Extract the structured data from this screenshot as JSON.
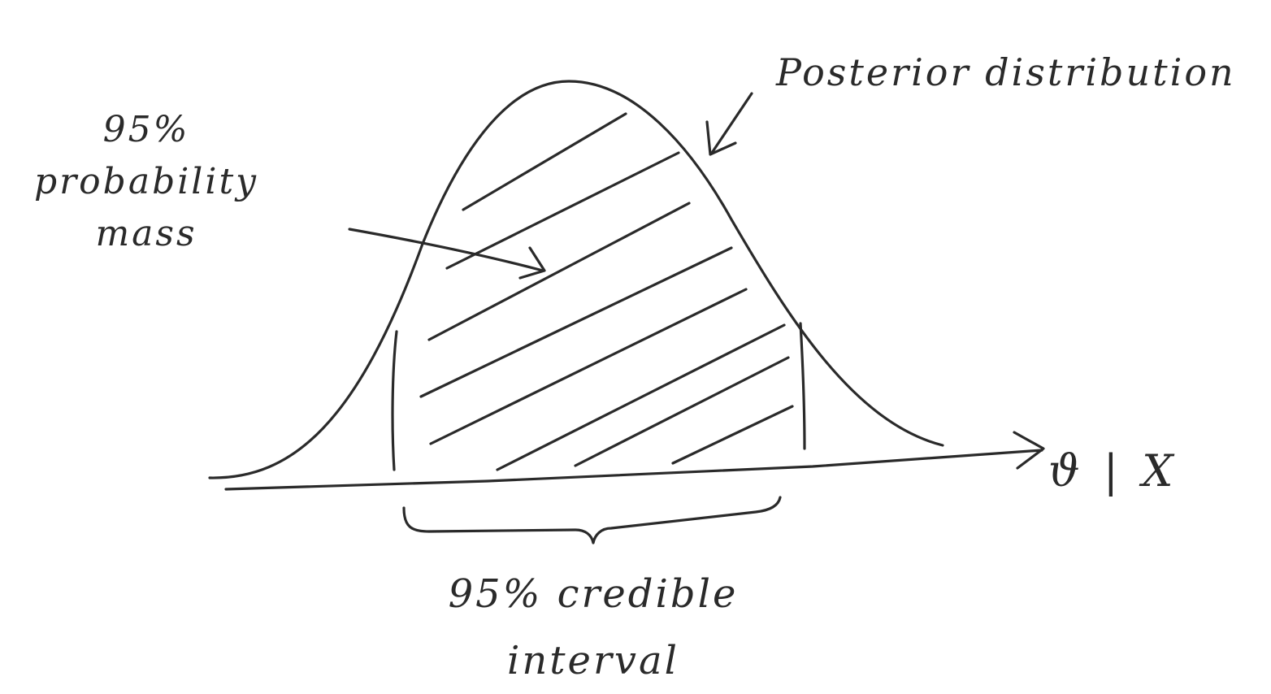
{
  "annotations": {
    "mass_label": [
      "95%",
      "probability",
      "mass"
    ],
    "posterior_label": "Posterior distribution",
    "interval_label": [
      "95% credible",
      "interval"
    ],
    "axis_label": "ϑ | X"
  },
  "colors": {
    "ink": "#2a2a2a",
    "paper": "#ffffff"
  }
}
